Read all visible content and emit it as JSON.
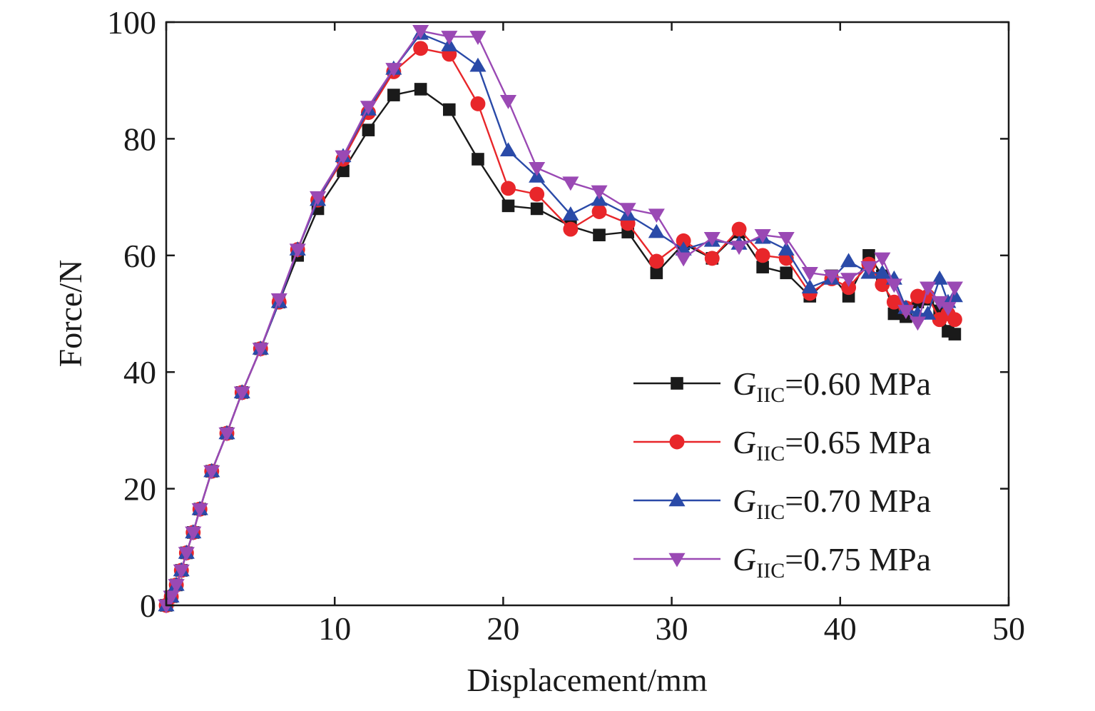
{
  "chart_data": {
    "type": "line",
    "title": "",
    "xlabel": "Displacement/mm",
    "ylabel": "Force/N",
    "xlim": [
      0,
      50
    ],
    "ylim": [
      0,
      100
    ],
    "xticks": [
      0,
      10,
      20,
      30,
      40,
      50
    ],
    "yticks": [
      0,
      20,
      40,
      60,
      80,
      100
    ],
    "x_tick_labels": [
      "",
      "10",
      "20",
      "30",
      "40",
      "50"
    ],
    "y_tick_labels": [
      "0",
      "20",
      "40",
      "60",
      "80",
      "100"
    ],
    "grid": false,
    "legend_position": "bottom-right",
    "series": [
      {
        "name": "GIIC=0.60 MPa",
        "label_main": "G",
        "label_sub": "IIC",
        "label_rest": "=0.60 MPa",
        "color": "#1a1a1a",
        "marker": "square",
        "points": [
          [
            0,
            0
          ],
          [
            0.3,
            1.5
          ],
          [
            0.6,
            3.5
          ],
          [
            0.9,
            6
          ],
          [
            1.2,
            9
          ],
          [
            1.6,
            12.5
          ],
          [
            2,
            16.5
          ],
          [
            2.7,
            23
          ],
          [
            3.6,
            29.5
          ],
          [
            4.5,
            36.5
          ],
          [
            5.6,
            44
          ],
          [
            6.7,
            52
          ],
          [
            7.8,
            60
          ],
          [
            9,
            68
          ],
          [
            10.5,
            74.5
          ],
          [
            12,
            81.5
          ],
          [
            13.5,
            87.5
          ],
          [
            15.1,
            88.5
          ],
          [
            16.8,
            85
          ],
          [
            18.5,
            76.5
          ],
          [
            20.3,
            68.5
          ],
          [
            22,
            68
          ],
          [
            24,
            65
          ],
          [
            25.7,
            63.5
          ],
          [
            27.4,
            64
          ],
          [
            29.1,
            57
          ],
          [
            30.7,
            62
          ],
          [
            32.4,
            59.5
          ],
          [
            34,
            64
          ],
          [
            35.4,
            58
          ],
          [
            36.8,
            57
          ],
          [
            38.2,
            53
          ],
          [
            39.5,
            56.5
          ],
          [
            40.5,
            53
          ],
          [
            41.7,
            60
          ],
          [
            42.5,
            56.5
          ],
          [
            43.2,
            50
          ],
          [
            43.9,
            49.5
          ],
          [
            44.6,
            52
          ],
          [
            45.2,
            52.5
          ],
          [
            45.9,
            50.5
          ],
          [
            46.4,
            47
          ],
          [
            46.8,
            46.5
          ]
        ]
      },
      {
        "name": "GIIC=0.65 MPa",
        "label_main": "G",
        "label_sub": "IIC",
        "label_rest": "=0.65 MPa",
        "color": "#e8262a",
        "marker": "circle",
        "points": [
          [
            0,
            0
          ],
          [
            0.3,
            1.5
          ],
          [
            0.6,
            3.5
          ],
          [
            0.9,
            6
          ],
          [
            1.2,
            9
          ],
          [
            1.6,
            12.5
          ],
          [
            2,
            16.5
          ],
          [
            2.7,
            23
          ],
          [
            3.6,
            29.5
          ],
          [
            4.5,
            36.5
          ],
          [
            5.6,
            44
          ],
          [
            6.7,
            52
          ],
          [
            7.8,
            61
          ],
          [
            9,
            69.5
          ],
          [
            10.5,
            76.5
          ],
          [
            12,
            84.5
          ],
          [
            13.5,
            91.5
          ],
          [
            15.1,
            95.5
          ],
          [
            16.8,
            94.5
          ],
          [
            18.5,
            86
          ],
          [
            20.3,
            71.5
          ],
          [
            22,
            70.5
          ],
          [
            24,
            64.5
          ],
          [
            25.7,
            67.5
          ],
          [
            27.4,
            65.5
          ],
          [
            29.1,
            59
          ],
          [
            30.7,
            62.5
          ],
          [
            32.4,
            59.5
          ],
          [
            34,
            64.5
          ],
          [
            35.4,
            60
          ],
          [
            36.8,
            59.5
          ],
          [
            38.2,
            53.5
          ],
          [
            39.5,
            56
          ],
          [
            40.5,
            54.5
          ],
          [
            41.7,
            58.5
          ],
          [
            42.5,
            55
          ],
          [
            43.2,
            52
          ],
          [
            43.9,
            51
          ],
          [
            44.6,
            53
          ],
          [
            45.2,
            53
          ],
          [
            45.9,
            49
          ],
          [
            46.4,
            50
          ],
          [
            46.8,
            49
          ]
        ]
      },
      {
        "name": "GIIC=0.70 MPa",
        "label_main": "G",
        "label_sub": "IIC",
        "label_rest": "=0.70 MPa",
        "color": "#2a4aa8",
        "marker": "triangle-up",
        "points": [
          [
            0,
            0
          ],
          [
            0.3,
            1.5
          ],
          [
            0.6,
            3.5
          ],
          [
            0.9,
            6
          ],
          [
            1.2,
            9
          ],
          [
            1.6,
            12.5
          ],
          [
            2,
            16.5
          ],
          [
            2.7,
            23
          ],
          [
            3.6,
            29.5
          ],
          [
            4.5,
            36.5
          ],
          [
            5.6,
            44
          ],
          [
            6.7,
            52
          ],
          [
            7.8,
            61
          ],
          [
            9,
            69.5
          ],
          [
            10.5,
            77
          ],
          [
            12,
            85
          ],
          [
            13.5,
            92
          ],
          [
            15.1,
            98
          ],
          [
            16.8,
            96
          ],
          [
            18.5,
            92.5
          ],
          [
            20.3,
            78
          ],
          [
            22,
            73.5
          ],
          [
            24,
            67
          ],
          [
            25.7,
            69.5
          ],
          [
            27.4,
            67
          ],
          [
            29.1,
            64
          ],
          [
            30.7,
            61
          ],
          [
            32.4,
            62.5
          ],
          [
            34,
            62
          ],
          [
            35.4,
            63
          ],
          [
            36.8,
            61
          ],
          [
            38.2,
            54.5
          ],
          [
            39.5,
            56
          ],
          [
            40.5,
            59
          ],
          [
            41.7,
            57
          ],
          [
            42.5,
            57
          ],
          [
            43.2,
            56
          ],
          [
            43.9,
            51
          ],
          [
            44.6,
            50
          ],
          [
            45.2,
            50
          ],
          [
            45.9,
            56
          ],
          [
            46.4,
            52
          ],
          [
            46.8,
            53
          ]
        ]
      },
      {
        "name": "GIIC=0.75 MPa",
        "label_main": "G",
        "label_sub": "IIC",
        "label_rest": "=0.75 MPa",
        "color": "#9a49b4",
        "marker": "triangle-down",
        "points": [
          [
            0,
            0
          ],
          [
            0.3,
            1.5
          ],
          [
            0.6,
            3.5
          ],
          [
            0.9,
            6
          ],
          [
            1.2,
            9
          ],
          [
            1.6,
            12.5
          ],
          [
            2,
            16.5
          ],
          [
            2.7,
            23
          ],
          [
            3.6,
            29.5
          ],
          [
            4.5,
            36.5
          ],
          [
            5.6,
            44
          ],
          [
            6.7,
            52.5
          ],
          [
            7.8,
            61
          ],
          [
            9,
            70
          ],
          [
            10.5,
            77
          ],
          [
            12,
            85.5
          ],
          [
            13.5,
            92
          ],
          [
            15.1,
            98.5
          ],
          [
            16.8,
            97.5
          ],
          [
            18.5,
            97.5
          ],
          [
            20.3,
            86.5
          ],
          [
            22,
            75
          ],
          [
            24,
            72.5
          ],
          [
            25.7,
            71
          ],
          [
            27.4,
            68
          ],
          [
            29.1,
            67
          ],
          [
            30.7,
            59.5
          ],
          [
            32.4,
            63
          ],
          [
            34,
            61.5
          ],
          [
            35.4,
            63.5
          ],
          [
            36.8,
            63
          ],
          [
            38.2,
            57
          ],
          [
            39.5,
            56.5
          ],
          [
            40.5,
            56
          ],
          [
            41.7,
            58
          ],
          [
            42.5,
            59.5
          ],
          [
            43.2,
            55
          ],
          [
            43.9,
            50.5
          ],
          [
            44.6,
            48.5
          ],
          [
            45.2,
            54.5
          ],
          [
            45.9,
            52
          ],
          [
            46.4,
            51
          ],
          [
            46.8,
            54.5
          ]
        ]
      }
    ]
  }
}
